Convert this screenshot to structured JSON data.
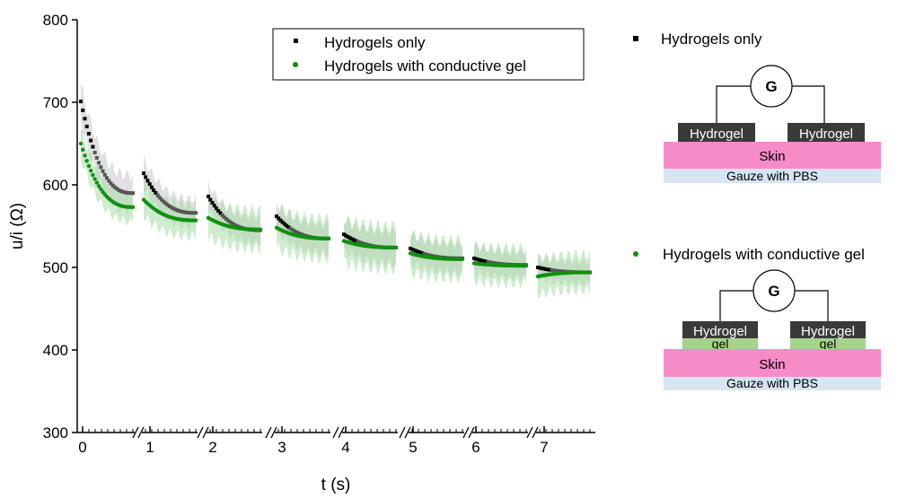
{
  "chart_data": {
    "type": "scatter",
    "xlabel": "t (s)",
    "ylabel": "u/i (Ω)",
    "ylim": [
      300,
      800
    ],
    "yticks": [
      300,
      400,
      500,
      600,
      700,
      800
    ],
    "x_tick_labels": [
      "0",
      "1",
      "2",
      "3",
      "4",
      "5",
      "6",
      "7"
    ],
    "axis_break": true,
    "legend_position": "top-right",
    "series": [
      {
        "name": "Hydrogels only",
        "marker": "square",
        "color": "#000000",
        "band_color": "#c8c8c8",
        "segments": [
          {
            "start": 0,
            "start_value": 701,
            "end_value": 590,
            "band_half_width": 25
          },
          {
            "start": 1,
            "start_value": 614,
            "end_value": 566,
            "band_half_width": 20
          },
          {
            "start": 2,
            "start_value": 586,
            "end_value": 545,
            "band_half_width": 18
          },
          {
            "start": 3,
            "start_value": 562,
            "end_value": 535,
            "band_half_width": 20
          },
          {
            "start": 4,
            "start_value": 540,
            "end_value": 524,
            "band_half_width": 22
          },
          {
            "start": 5,
            "start_value": 523,
            "end_value": 511,
            "band_half_width": 20
          },
          {
            "start": 6,
            "start_value": 511,
            "end_value": 503,
            "band_half_width": 18
          },
          {
            "start": 7,
            "start_value": 500,
            "end_value": 494,
            "band_half_width": 15
          }
        ]
      },
      {
        "name": "Hydrogels with conductive gel",
        "marker": "circle",
        "color": "#109010",
        "band_color": "#a8dca8",
        "segments": [
          {
            "start": 0,
            "start_value": 650,
            "end_value": 573,
            "band_half_width": 20
          },
          {
            "start": 1,
            "start_value": 582,
            "end_value": 557,
            "band_half_width": 23
          },
          {
            "start": 2,
            "start_value": 560,
            "end_value": 546,
            "band_half_width": 27
          },
          {
            "start": 3,
            "start_value": 548,
            "end_value": 535,
            "band_half_width": 28
          },
          {
            "start": 4,
            "start_value": 532,
            "end_value": 524,
            "band_half_width": 30
          },
          {
            "start": 5,
            "start_value": 517,
            "end_value": 510,
            "band_half_width": 27
          },
          {
            "start": 6,
            "start_value": 505,
            "end_value": 502,
            "band_half_width": 25
          },
          {
            "start": 7,
            "start_value": 489,
            "end_value": 494,
            "band_half_width": 25
          }
        ]
      }
    ]
  },
  "schematics": [
    {
      "title": "Hydrogels only",
      "marker": "square",
      "meter": "G",
      "electrodes": [
        "Hydrogel",
        "Hydrogel"
      ],
      "skin": "Skin",
      "gauze": "Gauze with PBS",
      "gel": null
    },
    {
      "title": "Hydrogels with conductive gel",
      "marker": "circle",
      "meter": "G",
      "electrodes": [
        "Hydrogel",
        "Hydrogel"
      ],
      "skin": "Skin",
      "gauze": "Gauze with PBS",
      "gel": "gel"
    }
  ],
  "colors": {
    "electrode": "#3a3a3a",
    "skin": "#f58cc8",
    "gauze": "#d8e4f2",
    "gel": "#a4d48c"
  }
}
